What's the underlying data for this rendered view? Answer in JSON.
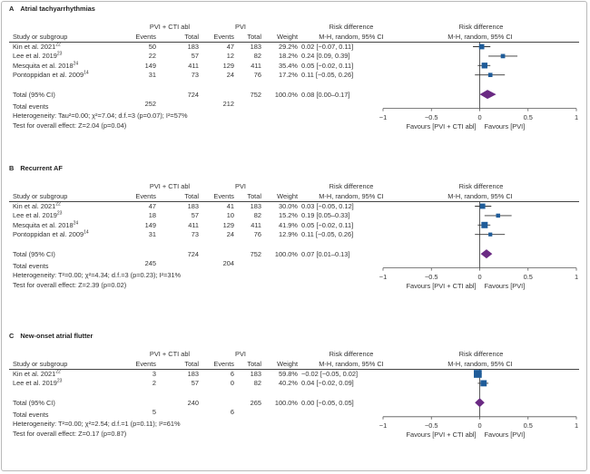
{
  "colors": {
    "square": "#1f5c99",
    "diamond": "#6a2a83",
    "line": "#333333",
    "axis": "#555555"
  },
  "headers": {
    "study": "Study or subgroup",
    "events": "Events",
    "total": "Total",
    "weight": "Weight",
    "rd_line1": "Risk difference",
    "rd_line2": "M-H, random, 95% CI",
    "pooled_label": "Total (95% CI)",
    "total_events_label": "Total events"
  },
  "chart_data": [
    {
      "type": "forest",
      "panel_letter": "A",
      "title": "Atrial tachyarrhythmias",
      "group1_label": "PVI + CTI abl",
      "group2_label": "PVI",
      "studies": [
        {
          "name": "Kin et al. 2021",
          "ref": "22",
          "e1": "50",
          "n1": "183",
          "e2": "47",
          "n2": "183",
          "weight": "29.2%",
          "ci_text": "0.02 [−0.07, 0.11]",
          "est": 0.02,
          "lo": -0.07,
          "hi": 0.11,
          "w": 29.2
        },
        {
          "name": "Lee et al. 2019",
          "ref": "23",
          "e1": "22",
          "n1": "57",
          "e2": "12",
          "n2": "82",
          "weight": "18.2%",
          "ci_text": "0.24 [0.09, 0.39]",
          "est": 0.24,
          "lo": 0.09,
          "hi": 0.39,
          "w": 18.2
        },
        {
          "name": "Mesquita et al. 2018",
          "ref": "24",
          "e1": "149",
          "n1": "411",
          "e2": "129",
          "n2": "411",
          "weight": "35.4%",
          "ci_text": "0.05 [−0.02, 0.11]",
          "est": 0.05,
          "lo": -0.02,
          "hi": 0.11,
          "w": 35.4
        },
        {
          "name": "Pontoppidan et al. 2009",
          "ref": "14",
          "e1": "31",
          "n1": "73",
          "e2": "24",
          "n2": "76",
          "weight": "17.2%",
          "ci_text": "0.11 [−0.05, 0.26]",
          "est": 0.11,
          "lo": -0.05,
          "hi": 0.26,
          "w": 17.2
        }
      ],
      "total": {
        "n1": "724",
        "n2": "752",
        "weight": "100.0%",
        "ci_text": "0.08 [0.00–0.17]",
        "est": 0.08,
        "lo": 0.0,
        "hi": 0.17
      },
      "total_events": {
        "e1": "252",
        "e2": "212"
      },
      "heterogeneity": "Heterogeneity: Tau²=0.00; χ²=7.04; d.f.=3 (p=0.07); I²=57%",
      "overall_effect": "Test for overall effect: Z=2.04 (p=0.04)",
      "xlim": [
        -1,
        1
      ],
      "xticks": [
        "−1",
        "−0.5",
        "0",
        "0.5",
        "1"
      ],
      "favours_left": "Favours [PVI + CTI abl]",
      "favours_right": "Favours [PVI]"
    },
    {
      "type": "forest",
      "panel_letter": "B",
      "title": "Recurrent AF",
      "group1_label": "PVI + CTI abl",
      "group2_label": "PVI",
      "studies": [
        {
          "name": "Kin et al. 2021",
          "ref": "22",
          "e1": "47",
          "n1": "183",
          "e2": "41",
          "n2": "183",
          "weight": "30.0%",
          "ci_text": "0.03 [−0.05, 0.12]",
          "est": 0.03,
          "lo": -0.05,
          "hi": 0.12,
          "w": 30.0
        },
        {
          "name": "Lee et al. 2019",
          "ref": "23",
          "e1": "18",
          "n1": "57",
          "e2": "10",
          "n2": "82",
          "weight": "15.2%",
          "ci_text": "0.19 [0.05–0.33]",
          "est": 0.19,
          "lo": 0.05,
          "hi": 0.33,
          "w": 15.2
        },
        {
          "name": "Mesquita et al. 2018",
          "ref": "24",
          "e1": "149",
          "n1": "411",
          "e2": "129",
          "n2": "411",
          "weight": "41.9%",
          "ci_text": "0.05 [−0.02, 0.11]",
          "est": 0.05,
          "lo": -0.02,
          "hi": 0.11,
          "w": 41.9
        },
        {
          "name": "Pontoppidan et al. 2009",
          "ref": "14",
          "e1": "31",
          "n1": "73",
          "e2": "24",
          "n2": "76",
          "weight": "12.9%",
          "ci_text": "0.11 [−0.05, 0.26]",
          "est": 0.11,
          "lo": -0.05,
          "hi": 0.26,
          "w": 12.9
        }
      ],
      "total": {
        "n1": "724",
        "n2": "752",
        "weight": "100.0%",
        "ci_text": "0.07 [0.01–0.13]",
        "est": 0.07,
        "lo": 0.01,
        "hi": 0.13
      },
      "total_events": {
        "e1": "245",
        "e2": "204"
      },
      "heterogeneity": "Heterogeneity: T²=0.00; χ²=4.34; d.f.=3 (p=0.23); I²=31%",
      "overall_effect": "Test for overall effect: Z=2.39 (p=0.02)",
      "xlim": [
        -1,
        1
      ],
      "xticks": [
        "−1",
        "−0.5",
        "0",
        "0.5",
        "1"
      ],
      "favours_left": "Favours [PVI + CTI abl]",
      "favours_right": "Favours [PVI]"
    },
    {
      "type": "forest",
      "panel_letter": "C",
      "title": "New-onset atrial flutter",
      "group1_label": "PVI + CTI abl",
      "group2_label": "PVI",
      "studies": [
        {
          "name": "Kin et al. 2021",
          "ref": "22",
          "e1": "3",
          "n1": "183",
          "e2": "6",
          "n2": "183",
          "weight": "59.8%",
          "ci_text": "−0.02 [−0.05, 0.02]",
          "est": -0.02,
          "lo": -0.05,
          "hi": 0.02,
          "w": 59.8
        },
        {
          "name": "Lee et al. 2019",
          "ref": "23",
          "e1": "2",
          "n1": "57",
          "e2": "0",
          "n2": "82",
          "weight": "40.2%",
          "ci_text": "0.04 [−0.02, 0.09]",
          "est": 0.04,
          "lo": -0.02,
          "hi": 0.09,
          "w": 40.2
        }
      ],
      "total": {
        "n1": "240",
        "n2": "265",
        "weight": "100.0%",
        "ci_text": "0.00 [−0.05, 0.05]",
        "est": 0.0,
        "lo": -0.05,
        "hi": 0.05
      },
      "total_events": {
        "e1": "5",
        "e2": "6"
      },
      "heterogeneity": "Heterogeneity: T²=0.00; χ²=2.54; d.f.=1 (p=0.11); I²=61%",
      "overall_effect": "Test for overall effect: Z=0.17 (p=0.87)",
      "xlim": [
        -1,
        1
      ],
      "xticks": [
        "−1",
        "−0.5",
        "0",
        "0.5",
        "1"
      ],
      "favours_left": "Favours [PVI + CTI abl]",
      "favours_right": "Favours [PVI]"
    }
  ]
}
